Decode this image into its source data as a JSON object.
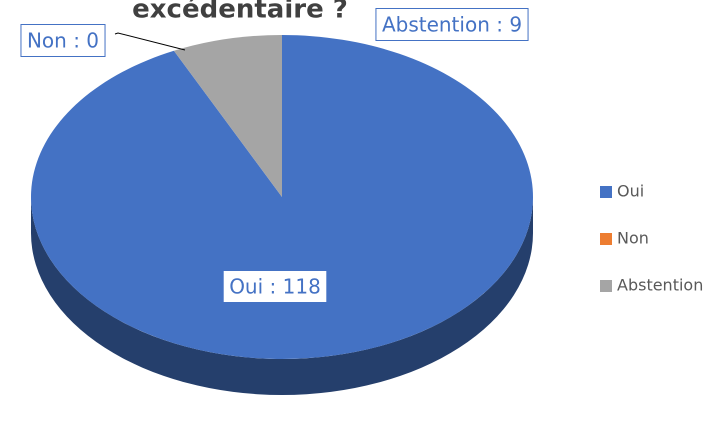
{
  "chart_data": {
    "type": "pie",
    "title": "excédentaire ?",
    "categories": [
      "Oui",
      "Non",
      "Abstention"
    ],
    "values": [
      118,
      0,
      9
    ],
    "value_labels": [
      "Oui : 118",
      "Non  : 0",
      "Abstention : 9"
    ],
    "colors": [
      "#4472c4",
      "#ed7d31",
      "#a5a5a5"
    ],
    "legend": "right"
  }
}
